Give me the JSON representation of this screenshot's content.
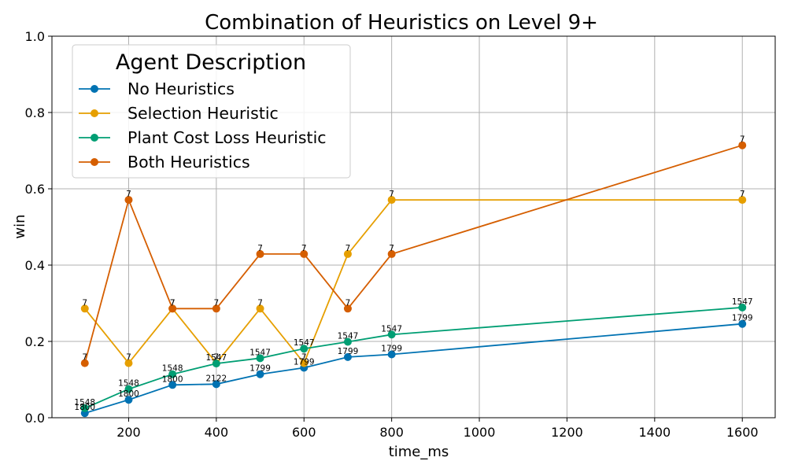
{
  "chart_data": {
    "type": "line",
    "title": "Combination of Heuristics on Level 9+",
    "xlabel": "time_ms",
    "ylabel": "win",
    "xlim": [
      25,
      1675
    ],
    "ylim": [
      0.0,
      1.0
    ],
    "xticks": [
      200,
      400,
      600,
      800,
      1000,
      1200,
      1400,
      1600
    ],
    "yticks": [
      0.0,
      0.2,
      0.4,
      0.6,
      0.8,
      1.0
    ],
    "grid": true,
    "legend": {
      "title": "Agent Description",
      "placement": "top-left"
    },
    "series": [
      {
        "name": "No Heuristics",
        "color": "#0072b2",
        "x": [
          100,
          200,
          300,
          400,
          500,
          600,
          700,
          800,
          1600
        ],
        "y": [
          0.012,
          0.047,
          0.086,
          0.088,
          0.114,
          0.131,
          0.159,
          0.166,
          0.246
        ],
        "labels": [
          "1800",
          "1800",
          "1800",
          "2122",
          "1799",
          "1799",
          "1799",
          "1799",
          "1799"
        ]
      },
      {
        "name": "Selection Heuristic",
        "color": "#e69f00",
        "x": [
          100,
          200,
          300,
          400,
          500,
          600,
          700,
          800,
          1600
        ],
        "y": [
          0.286,
          0.143,
          0.286,
          0.143,
          0.286,
          0.143,
          0.429,
          0.571,
          0.571
        ],
        "labels": [
          "7",
          "7",
          "7",
          "7",
          "7",
          "7",
          "7",
          "7",
          "7"
        ]
      },
      {
        "name": "Plant Cost Loss Heuristic",
        "color": "#009e73",
        "x": [
          100,
          200,
          300,
          400,
          500,
          600,
          700,
          800,
          1600
        ],
        "y": [
          0.025,
          0.075,
          0.114,
          0.142,
          0.156,
          0.181,
          0.199,
          0.218,
          0.289
        ],
        "labels": [
          "1548",
          "1548",
          "1548",
          "1547",
          "1547",
          "1547",
          "1547",
          "1547",
          "1547"
        ]
      },
      {
        "name": "Both Heuristics",
        "color": "#d55e00",
        "x": [
          100,
          200,
          300,
          400,
          500,
          600,
          700,
          800,
          1600
        ],
        "y": [
          0.143,
          0.571,
          0.286,
          0.286,
          0.429,
          0.429,
          0.286,
          0.429,
          0.714
        ],
        "labels": [
          "7",
          "7",
          "7",
          "7",
          "7",
          "7",
          "7",
          "7",
          "7"
        ]
      }
    ]
  }
}
